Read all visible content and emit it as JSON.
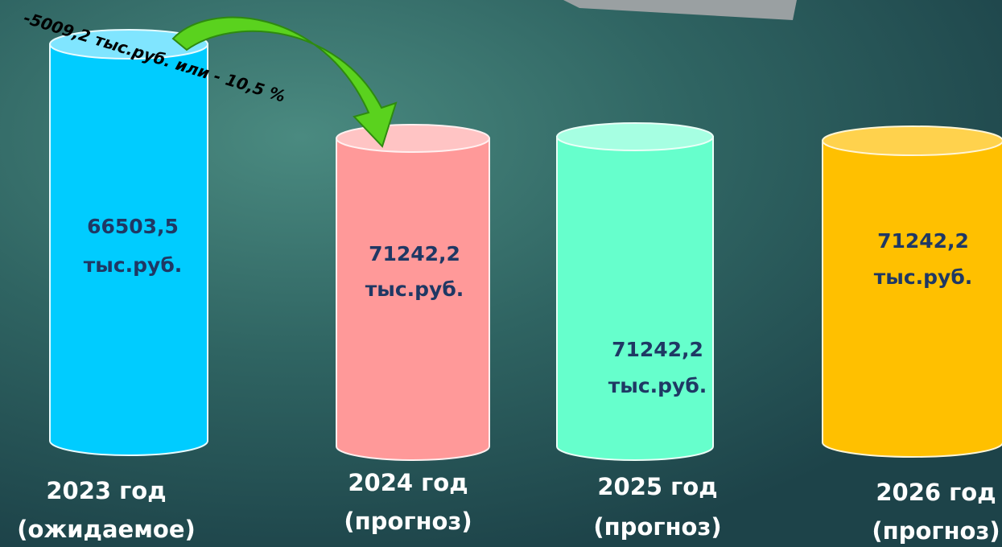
{
  "annotation": "-5009,2 тыс.руб. или  - 10,5 %",
  "columns": [
    {
      "value": "66503,5",
      "unit": "тыс.руб.",
      "year": "2023 год",
      "note": "(ожидаемое)"
    },
    {
      "value": "71242,2",
      "unit": "тыс.руб.",
      "year": "2024 год",
      "note": "(прогноз)"
    },
    {
      "value": "71242,2",
      "unit": "тыс.руб.",
      "year": "2025 год",
      "note": "(прогноз)"
    },
    {
      "value": "71242,2",
      "unit": "тыс.руб.",
      "year": "2026 год",
      "note": "(прогноз)"
    }
  ]
}
